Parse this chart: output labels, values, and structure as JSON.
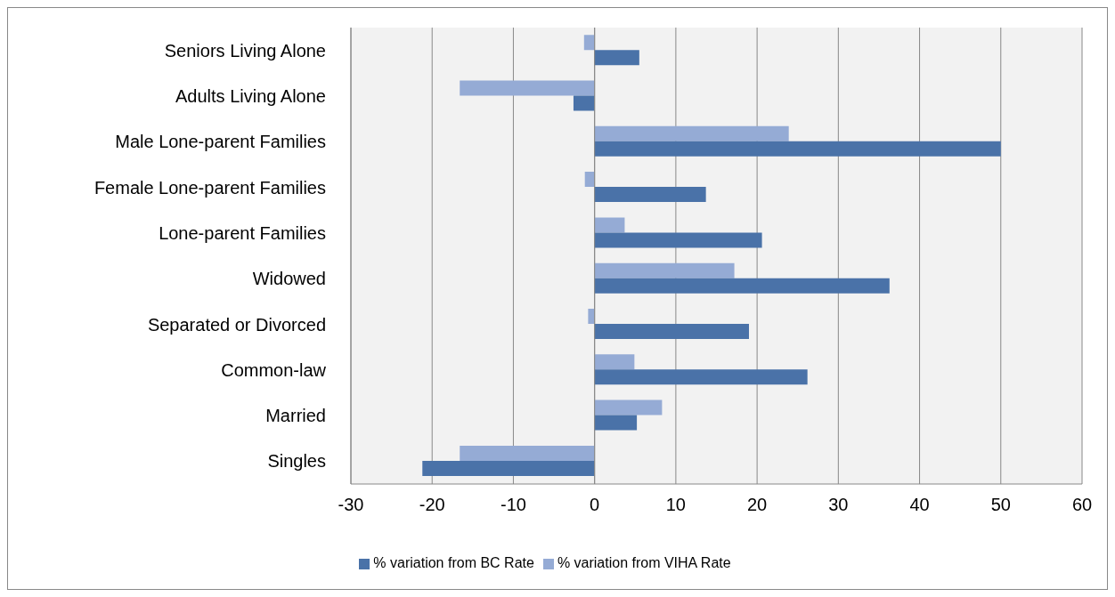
{
  "chart_data": {
    "type": "bar",
    "orientation": "horizontal",
    "categories": [
      "Seniors Living Alone",
      "Adults Living Alone",
      "Male Lone-parent Families",
      "Female Lone-parent Families",
      "Lone-parent Families",
      "Widowed",
      "Separated or Divorced",
      "Common-law",
      "Married",
      "Singles"
    ],
    "series": [
      {
        "name": "% variation from VIHA Rate",
        "color": "#95abd5",
        "values": [
          -1.3,
          -16.6,
          23.9,
          -1.2,
          3.7,
          17.2,
          -0.8,
          4.9,
          8.3,
          -16.6
        ]
      },
      {
        "name": "% variation from BC Rate",
        "color": "#4a72a8",
        "values": [
          5.5,
          -2.6,
          50.0,
          13.7,
          20.6,
          36.3,
          19.0,
          26.2,
          5.2,
          -21.2
        ]
      }
    ],
    "xlim": [
      -30,
      60
    ],
    "xticks": [
      -30,
      -20,
      -10,
      0,
      10,
      20,
      30,
      40,
      50,
      60
    ],
    "grid": "x",
    "legend": "bottom"
  }
}
